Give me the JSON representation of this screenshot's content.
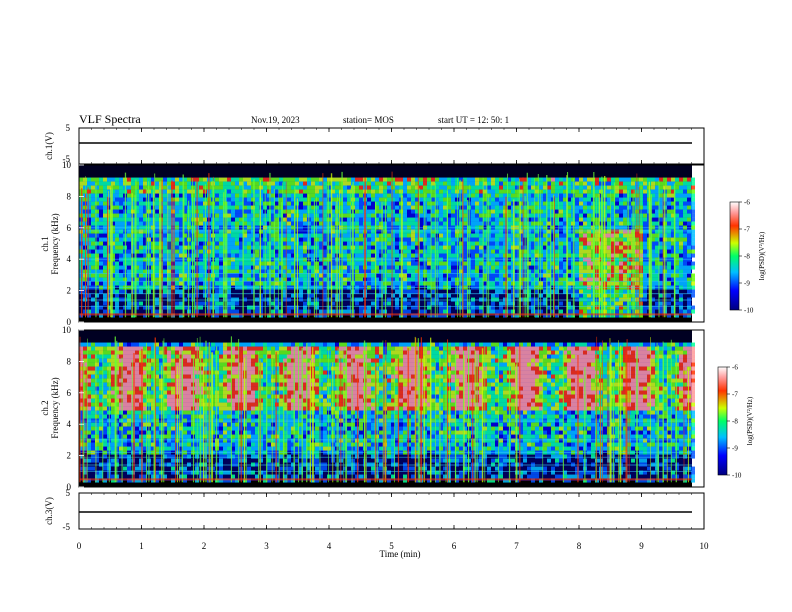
{
  "header": {
    "title": "VLF Spectra",
    "date": "Nov.19, 2023",
    "station": "station= MOS",
    "start": "start  UT  =   12: 50: 1"
  },
  "chart_data": [
    {
      "type": "line",
      "panel": "ch1-waveform",
      "ylabel": "ch.1(V)",
      "ylim": [
        -5,
        5
      ],
      "yticks": [
        "5",
        "-5"
      ],
      "x": [
        0,
        10
      ],
      "values": [
        0,
        0
      ]
    },
    {
      "type": "heatmap",
      "panel": "ch1-spectrogram",
      "ylabel": "ch.1\nFrequency (kHz)",
      "ylim": [
        0,
        10
      ],
      "yticks": [
        "0",
        "2",
        "4",
        "6",
        "8",
        "10"
      ],
      "colorbar": {
        "label": "log(PSD)(V²/Hz)",
        "range": [
          -10,
          -6
        ],
        "ticks": [
          "-6",
          "-7",
          "-8",
          "-9",
          "-10"
        ]
      }
    },
    {
      "type": "heatmap",
      "panel": "ch2-spectrogram",
      "ylabel": "ch.2\nFrequency (kHz)",
      "ylim": [
        0,
        10
      ],
      "yticks": [
        "0",
        "2",
        "4",
        "6",
        "8",
        "10"
      ],
      "colorbar": {
        "label": "log(PSD)(V²/Hz)",
        "range": [
          -10,
          -6
        ],
        "ticks": [
          "-6",
          "-7",
          "-8",
          "-9",
          "-10"
        ]
      }
    },
    {
      "type": "line",
      "panel": "ch3-waveform",
      "ylabel": "ch.3(V)",
      "ylim": [
        -5,
        5
      ],
      "yticks": [
        "5",
        "-5"
      ],
      "x": [
        0,
        10
      ],
      "values": [
        0,
        0
      ]
    }
  ],
  "xaxis": {
    "label": "Time  (min)",
    "range": [
      0,
      10
    ],
    "ticks": [
      "0",
      "1",
      "2",
      "3",
      "4",
      "5",
      "6",
      "7",
      "8",
      "9",
      "10"
    ]
  },
  "colors": {
    "scale": [
      "#00007f",
      "#0000ff",
      "#00bfff",
      "#00ff66",
      "#ccff00",
      "#ff3300",
      "#ff9999",
      "#ffffff"
    ]
  }
}
